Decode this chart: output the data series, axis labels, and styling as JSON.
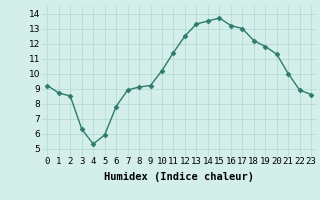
{
  "x": [
    0,
    1,
    2,
    3,
    4,
    5,
    6,
    7,
    8,
    9,
    10,
    11,
    12,
    13,
    14,
    15,
    16,
    17,
    18,
    19,
    20,
    21,
    22,
    23
  ],
  "y": [
    9.2,
    8.7,
    8.5,
    6.3,
    5.3,
    5.9,
    7.8,
    8.9,
    9.1,
    9.2,
    10.2,
    11.4,
    12.5,
    13.3,
    13.5,
    13.7,
    13.2,
    13.0,
    12.2,
    11.8,
    11.3,
    10.0,
    8.9,
    8.6
  ],
  "line_color": "#2e7b6e",
  "marker": "D",
  "marker_size": 2.5,
  "bg_color": "#d4eeea",
  "grid_color": "#b0d8d2",
  "xlabel": "Humidex (Indice chaleur)",
  "xlabel_fontsize": 7.5,
  "ylim": [
    4.5,
    14.5
  ],
  "xlim": [
    -0.5,
    23.5
  ],
  "yticks": [
    5,
    6,
    7,
    8,
    9,
    10,
    11,
    12,
    13,
    14
  ],
  "xtick_labels": [
    "0",
    "1",
    "2",
    "3",
    "4",
    "5",
    "6",
    "7",
    "8",
    "9",
    "10",
    "11",
    "12",
    "13",
    "14",
    "15",
    "16",
    "17",
    "18",
    "19",
    "20",
    "21",
    "22",
    "23"
  ],
  "tick_fontsize": 6.5,
  "linewidth": 1.0
}
